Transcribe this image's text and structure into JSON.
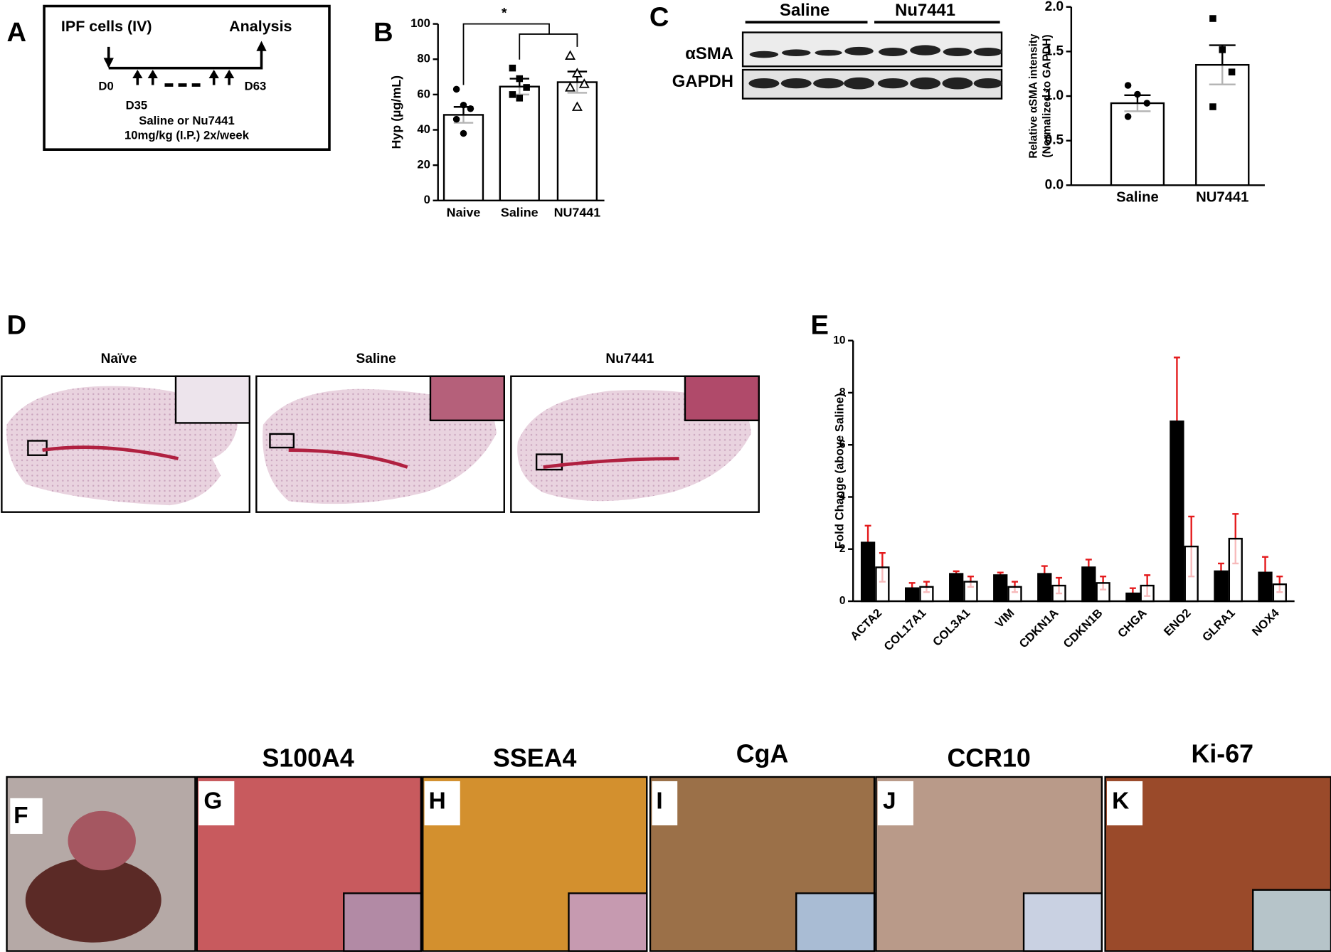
{
  "figure": {
    "letters": [
      "A",
      "B",
      "C",
      "D",
      "E",
      "F",
      "G",
      "H",
      "I",
      "J",
      "K"
    ],
    "panel_a": {
      "start": "IPF cells (IV)",
      "end": "Analysis",
      "day0": "D0",
      "day35": "D35",
      "day63": "D63",
      "treatment": "Saline or Nu7441",
      "dose": "10mg/kg (I.P.) 2x/week"
    },
    "blot": {
      "groups": [
        "Saline",
        "Nu7441"
      ],
      "rows": [
        "αSMA",
        "GAPDH"
      ]
    },
    "histology_titles": [
      "Naïve",
      "Saline",
      "Nu7441"
    ],
    "stain_titles": [
      "S100A4",
      "SSEA4",
      "CgA",
      "CCR10",
      "Ki-67"
    ]
  },
  "chart_data": [
    {
      "type": "bar",
      "categories": [
        "Naive",
        "Saline",
        "NU7441"
      ],
      "values": [
        48.5,
        64.5,
        67
      ],
      "errors": [
        4.5,
        4.5,
        6
      ],
      "points": [
        [
          63,
          54,
          52,
          46,
          38
        ],
        [
          75,
          69,
          64,
          60,
          58
        ],
        [
          82,
          72,
          66,
          64,
          53
        ]
      ],
      "markers": [
        "circle",
        "square",
        "triangle"
      ],
      "color": "#ffffff",
      "error_color": "#000000",
      "ylabel": [
        "Hyp (µg/mL)"
      ],
      "ylim": [
        0,
        100
      ],
      "yticks": [
        0,
        20,
        40,
        60,
        80,
        100
      ],
      "annotation": "*"
    },
    {
      "type": "bar",
      "categories": [
        "Saline",
        "NU7441"
      ],
      "values": [
        0.92,
        1.35
      ],
      "errors": [
        0.09,
        0.22
      ],
      "points": [
        [
          1.12,
          1.02,
          0.92,
          0.77
        ],
        [
          1.87,
          1.52,
          1.27,
          0.88
        ]
      ],
      "markers": [
        "circle",
        "square"
      ],
      "color": "#ffffff",
      "error_color": "#000000",
      "ylabel": [
        "Relative αSMA intensity",
        "(Normalized to GAPDH)"
      ],
      "ylim": [
        0,
        2
      ],
      "yticks": [
        {
          "value": 0,
          "label": "0.0"
        },
        0.5,
        {
          "value": 1,
          "label": "1.0"
        },
        1.5,
        {
          "value": 2,
          "label": "2.0"
        }
      ]
    },
    {
      "type": "bar",
      "categories": [
        "ACTA2",
        "COL17A1",
        "COL3A1",
        "VIM",
        "CDKN1A",
        "CDKN1B",
        "CHGA",
        "ENO2",
        "GLRA1",
        "NOX4"
      ],
      "series": [
        {
          "color": "#000000",
          "values": [
            2.25,
            0.5,
            1.05,
            1.0,
            1.05,
            1.3,
            0.3,
            6.9,
            1.15,
            1.1
          ],
          "errors": [
            0.65,
            0.2,
            0.1,
            0.1,
            0.3,
            0.3,
            0.2,
            2.45,
            0.3,
            0.6
          ]
        },
        {
          "color": "#ffffff",
          "values": [
            1.3,
            0.55,
            0.75,
            0.55,
            0.6,
            0.7,
            0.6,
            2.1,
            2.4,
            0.65
          ],
          "errors": [
            0.55,
            0.2,
            0.2,
            0.2,
            0.3,
            0.25,
            0.4,
            1.15,
            0.95,
            0.3
          ]
        }
      ],
      "error_color": "#e41a1c",
      "ylabel": [
        "Fold Change (above Saline)"
      ],
      "ylim": [
        0,
        10
      ],
      "yticks": [
        0,
        2,
        4,
        6,
        8,
        10
      ]
    }
  ]
}
